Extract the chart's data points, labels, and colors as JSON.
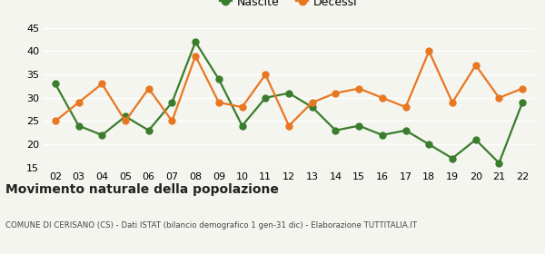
{
  "years": [
    "02",
    "03",
    "04",
    "05",
    "06",
    "07",
    "08",
    "09",
    "10",
    "11",
    "12",
    "13",
    "14",
    "15",
    "16",
    "17",
    "18",
    "19",
    "20",
    "21",
    "22"
  ],
  "nascite": [
    33,
    24,
    22,
    26,
    23,
    29,
    42,
    34,
    24,
    30,
    31,
    28,
    23,
    24,
    22,
    23,
    20,
    17,
    21,
    16,
    29
  ],
  "decessi": [
    25,
    29,
    33,
    25,
    32,
    25,
    39,
    29,
    28,
    35,
    24,
    29,
    31,
    32,
    30,
    28,
    40,
    29,
    37,
    30,
    32
  ],
  "nascite_color": "#3a7d2c",
  "decessi_color": "#e87722",
  "ylim": [
    15,
    45
  ],
  "yticks": [
    15,
    20,
    25,
    30,
    35,
    40,
    45
  ],
  "title": "Movimento naturale della popolazione",
  "subtitle": "COMUNE DI CERISANO (CS) - Dati ISTAT (bilancio demografico 1 gen-31 dic) - Elaborazione TUTTITALIA.IT",
  "legend_nascite": "Nascite",
  "legend_decessi": "Decessi",
  "bg_color": "#f5f5f0",
  "grid_color": "#ffffff",
  "marker_size": 5,
  "linewidth": 1.6
}
